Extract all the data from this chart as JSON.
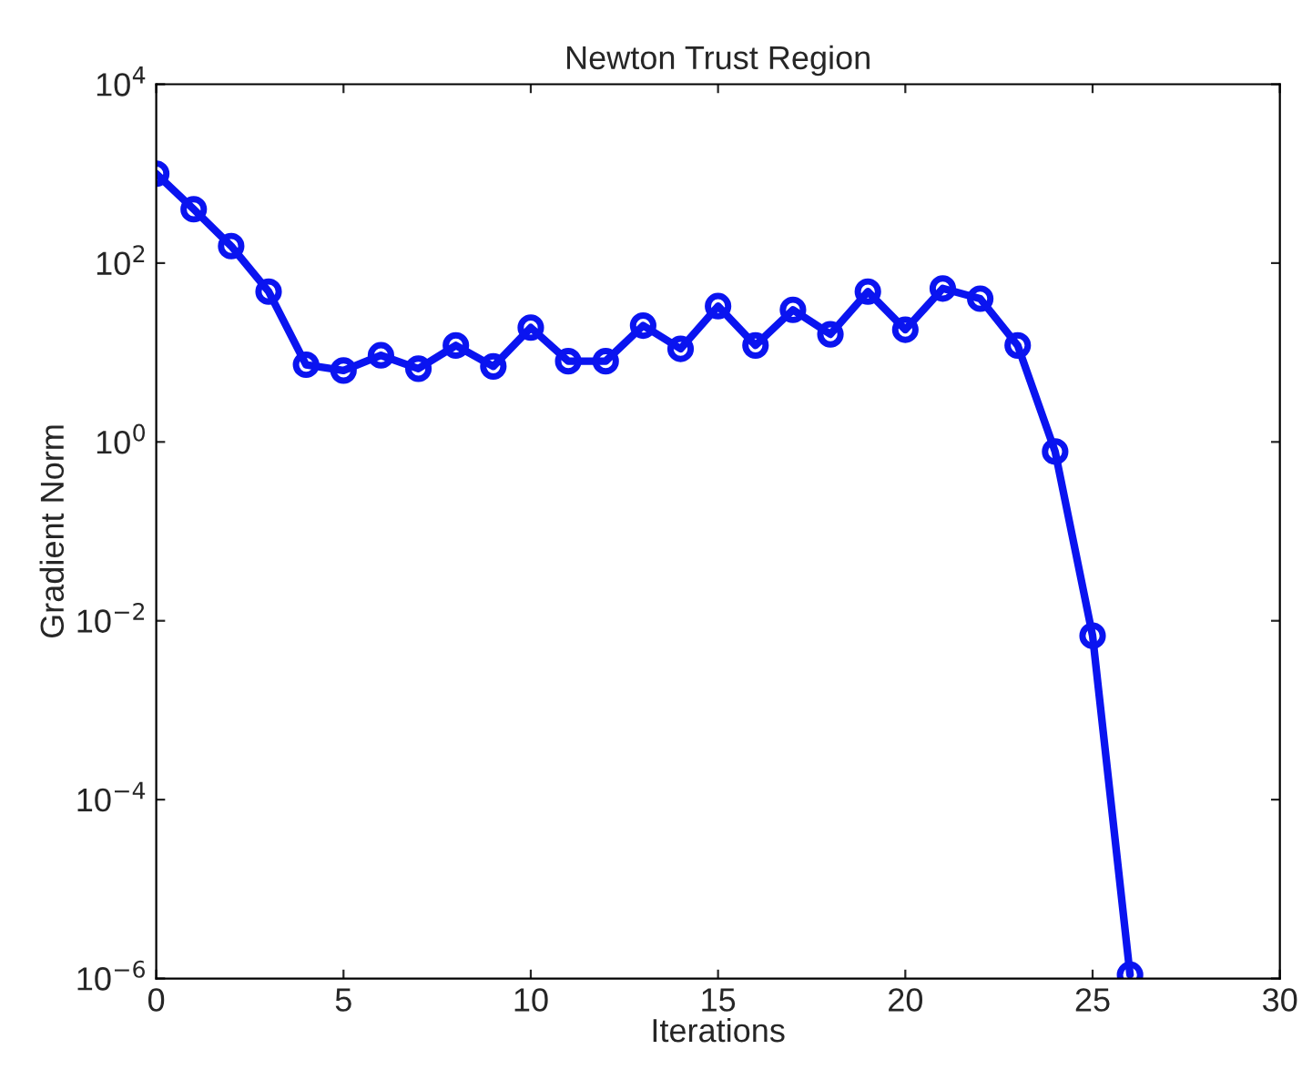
{
  "chart_data": {
    "type": "line",
    "title": "Newton Trust Region",
    "xlabel": "Iterations",
    "ylabel": "Gradient Norm",
    "x": [
      0,
      1,
      2,
      3,
      4,
      5,
      6,
      7,
      8,
      9,
      10,
      11,
      12,
      13,
      14,
      15,
      16,
      17,
      18,
      19,
      20,
      21,
      22,
      23,
      24,
      25,
      26
    ],
    "series": [
      {
        "color": "#0a14f0",
        "values": [
          1000,
          400,
          155,
          48,
          7.3,
          6.3,
          9.3,
          6.6,
          12,
          7,
          19,
          8,
          8,
          20,
          11,
          33,
          12,
          30,
          16,
          48,
          18,
          52,
          40,
          12,
          0.78,
          0.0068,
          1.1e-06
        ]
      }
    ],
    "log": "y",
    "marker": "circle",
    "line_style": "solid",
    "grid": false,
    "xlim": [
      0,
      30
    ],
    "xticks": [
      0,
      5,
      10,
      15,
      20,
      25,
      30
    ],
    "ylim": [
      1e-06,
      10000
    ],
    "yticks": [
      {
        "value": 1e-06,
        "label": "10$^{−6}$"
      },
      {
        "value": 0.0001,
        "label": "10$^{−4}$"
      },
      {
        "value": 0.01,
        "label": "10$^{−2}$"
      },
      {
        "value": 1,
        "label": "10$^{0}$"
      },
      {
        "value": 100,
        "label": "10$^{2}$"
      },
      {
        "value": 10000,
        "label": "10$^{4}$"
      }
    ]
  }
}
